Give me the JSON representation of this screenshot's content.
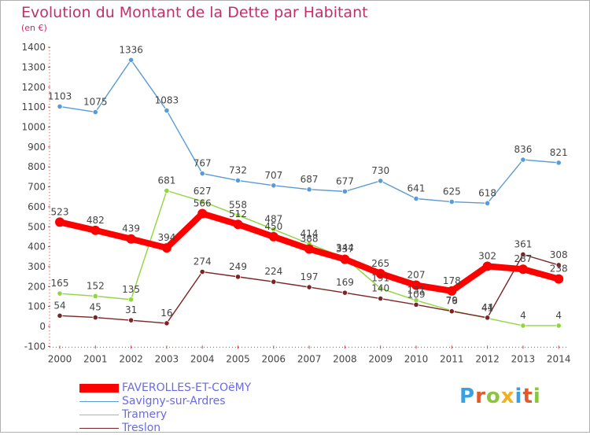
{
  "header": {
    "title": "Evolution du Montant de la Dette par Habitant",
    "unit": "(en €)"
  },
  "brand": {
    "logo_text": "Proxiti",
    "logo_colors": [
      "#3aa0e0",
      "#e05a2b",
      "#8bc43f",
      "#f0b020",
      "#3aa0e0",
      "#e05a2b",
      "#8bc43f"
    ]
  },
  "chart_data": {
    "type": "line",
    "title": "Evolution du Montant de la Dette par Habitant",
    "subtitle": "(en €)",
    "xlabel": "",
    "ylabel": "",
    "x": [
      "2000",
      "2001",
      "2002",
      "2003",
      "2004",
      "2005",
      "2006",
      "2007",
      "2008",
      "2009",
      "2010",
      "2011",
      "2012",
      "2013",
      "2014"
    ],
    "ylim": [
      -100,
      1400
    ],
    "yticks": [
      -100,
      0,
      100,
      200,
      300,
      400,
      500,
      600,
      700,
      800,
      900,
      1000,
      1100,
      1200,
      1300,
      1400
    ],
    "grid": false,
    "legend_position": "bottom-left",
    "series": [
      {
        "name": "FAVEROLLES-ET-COëMY",
        "color": "#ff0000",
        "values": [
          523,
          482,
          439,
          394,
          566,
          512,
          450,
          388,
          337,
          265,
          207,
          178,
          302,
          287,
          238
        ],
        "labels": [
          "523",
          "482",
          "439",
          "394",
          "566",
          "512",
          "450",
          "388",
          "337",
          "265",
          "207",
          "178",
          "302",
          "287",
          "238"
        ]
      },
      {
        "name": "Savigny-sur-Ardres",
        "color": "#5b9bd5",
        "values": [
          1103,
          1075,
          1336,
          1083,
          767,
          732,
          707,
          687,
          677,
          730,
          641,
          625,
          618,
          836,
          821
        ],
        "labels": [
          "1103",
          "1075",
          "1336",
          "1083",
          "767",
          "732",
          "707",
          "687",
          "677",
          "730",
          "641",
          "625",
          "618",
          "836",
          "821"
        ]
      },
      {
        "name": "Tramery",
        "color": "#8fd640",
        "values": [
          165,
          152,
          135,
          681,
          627,
          558,
          487,
          414,
          344,
          191,
          131,
          79,
          41,
          4,
          4
        ],
        "labels": [
          "165",
          "152",
          "135",
          "681",
          "627",
          "558",
          "487",
          "414",
          "344",
          "191",
          "131",
          "79",
          "41",
          "4",
          "4"
        ]
      },
      {
        "name": "Treslon",
        "color": "#7a2424",
        "values": [
          54,
          45,
          31,
          16,
          274,
          249,
          224,
          197,
          169,
          140,
          109,
          76,
          44,
          361,
          308
        ],
        "labels": [
          "54",
          "45",
          "31",
          "16",
          "274",
          "249",
          "224",
          "197",
          "169",
          "140",
          "109",
          "76",
          "44",
          "361",
          "308"
        ]
      }
    ]
  }
}
